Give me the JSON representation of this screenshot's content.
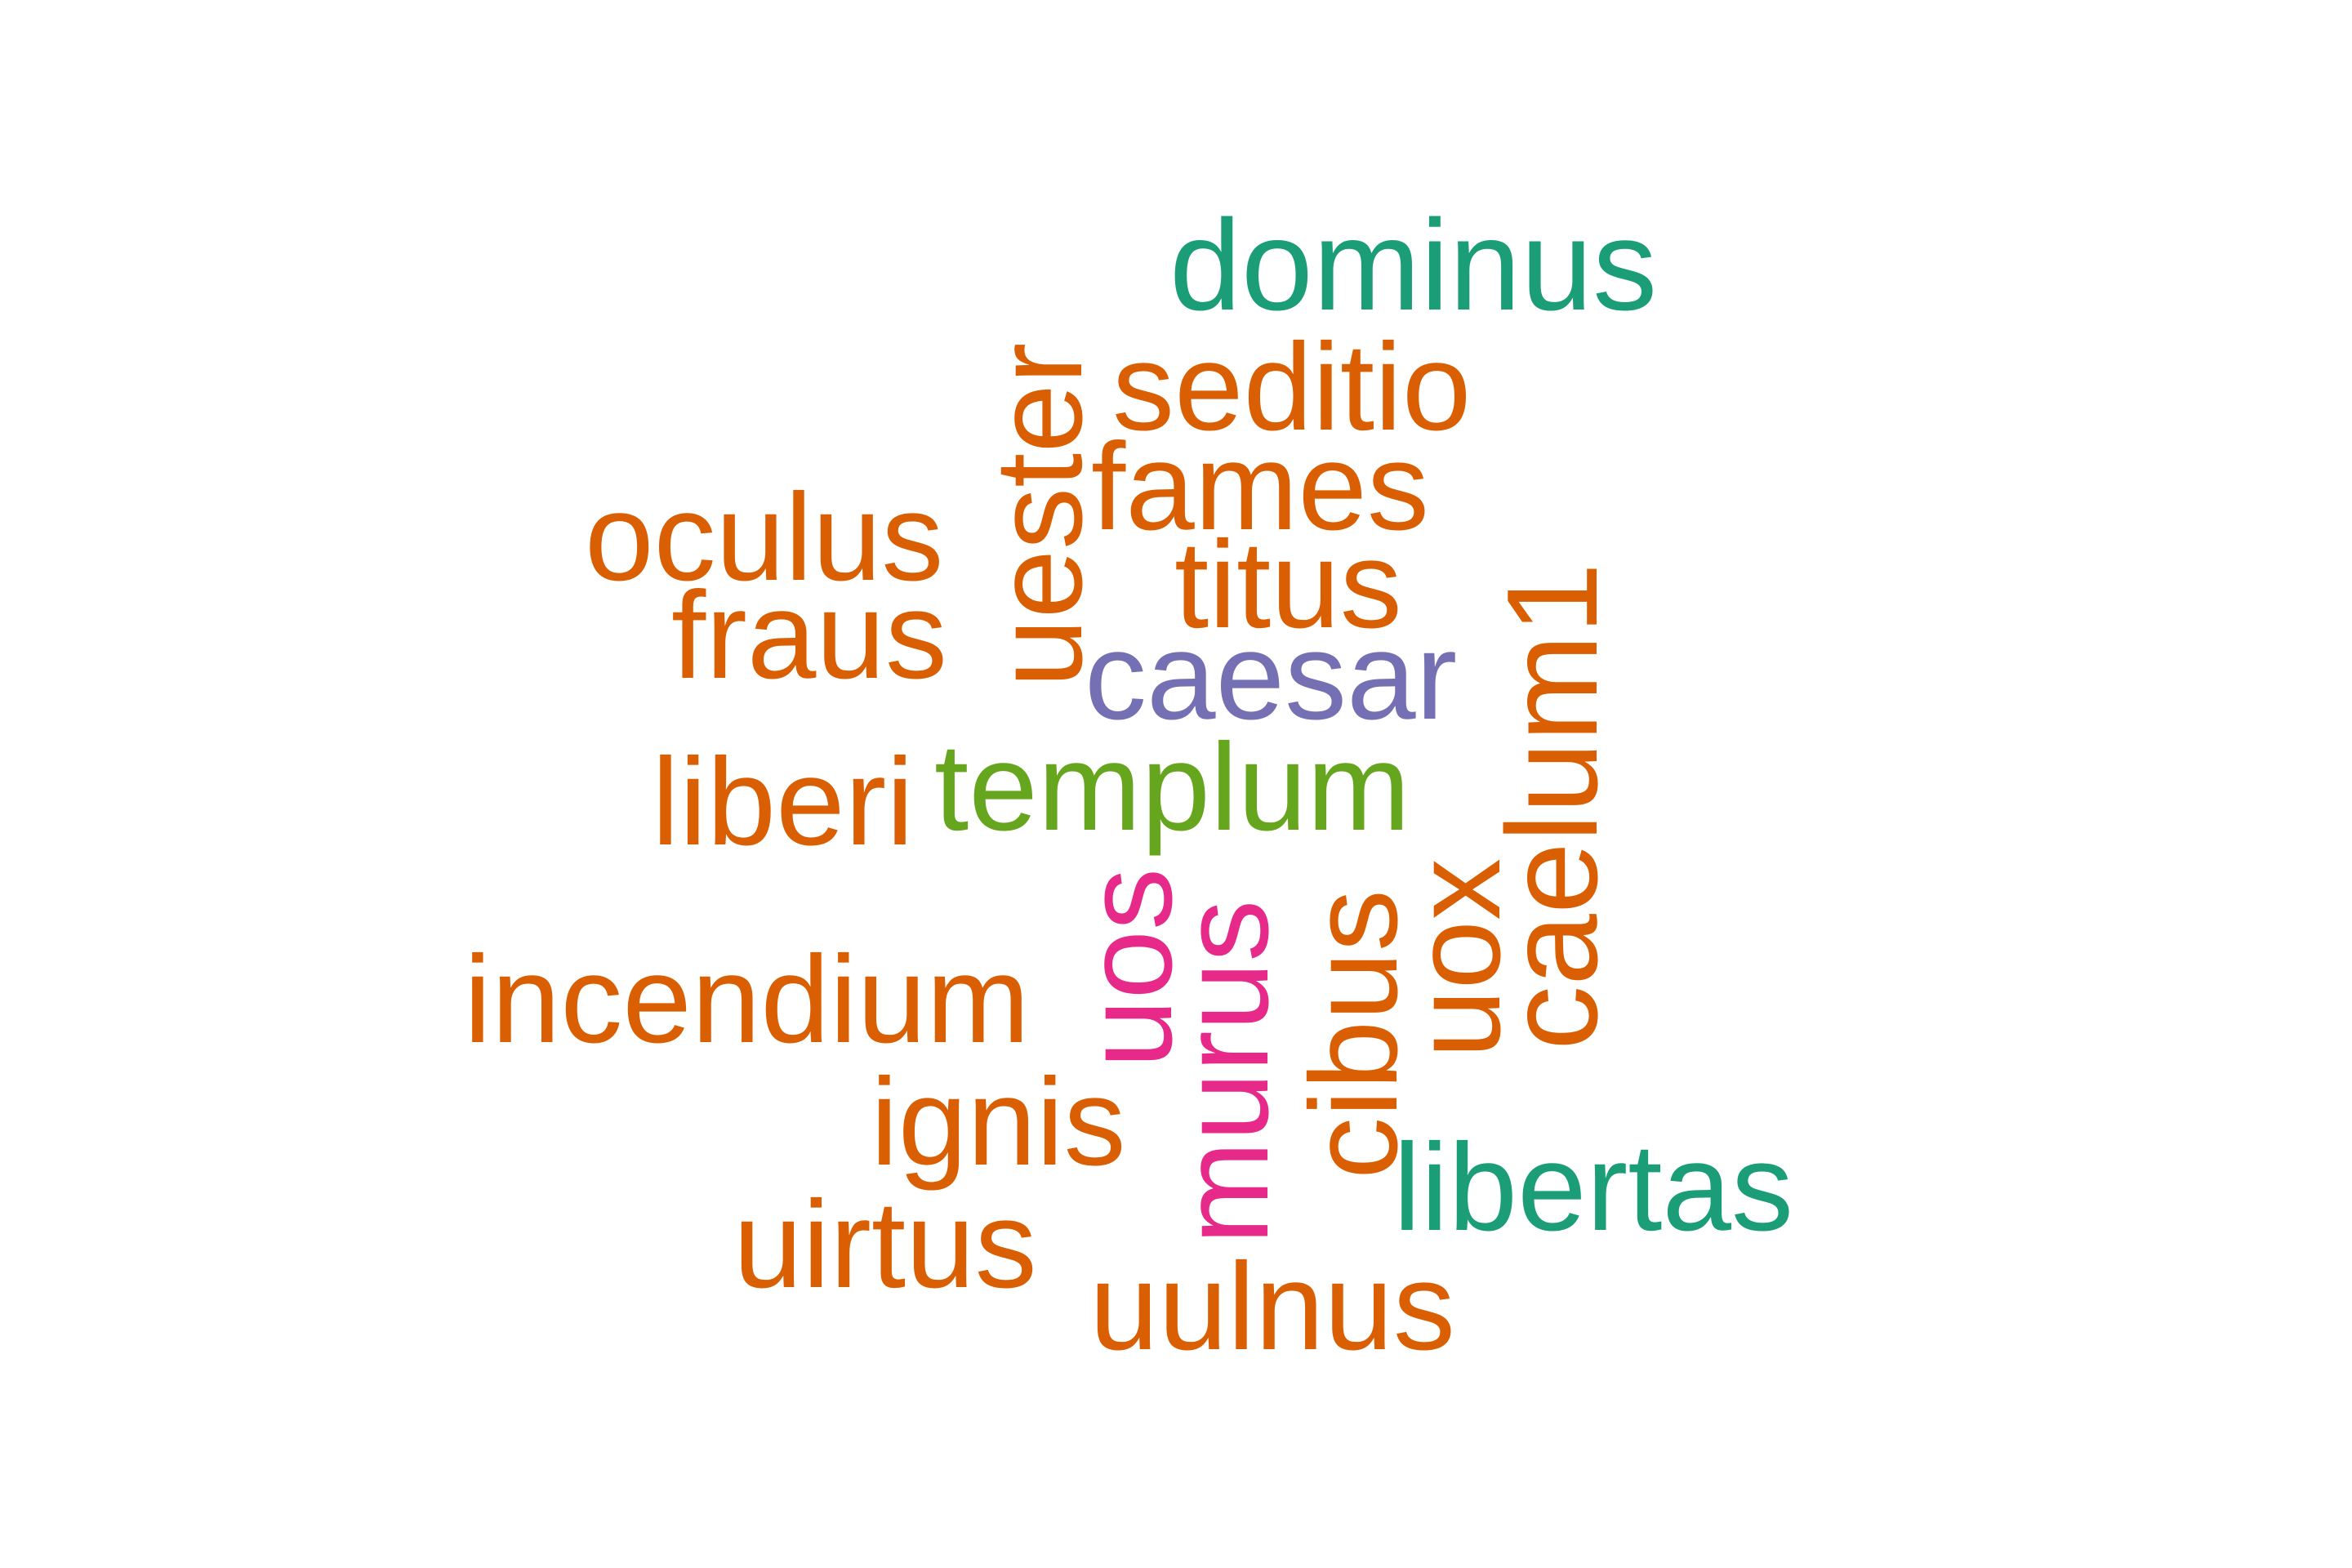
{
  "colors": {
    "teal": "#1b9e77",
    "orange": "#d95f02",
    "purple": "#7570b3",
    "pink": "#e7298a",
    "green": "#66a61e"
  },
  "words": {
    "dominus": "dominus",
    "seditio": "seditio",
    "uester": "uester",
    "fames": "fames",
    "oculus": "oculus",
    "titus": "titus",
    "fraus": "fraus",
    "caesar": "caesar",
    "caelum1": "caelum1",
    "liberi": "liberi",
    "templum": "templum",
    "uos": "uos",
    "murus": "murus",
    "cibus": "cibus",
    "uox": "uox",
    "incendium": "incendium",
    "ignis": "ignis",
    "libertas": "libertas",
    "uirtus": "uirtus",
    "uulnus": "uulnus"
  }
}
